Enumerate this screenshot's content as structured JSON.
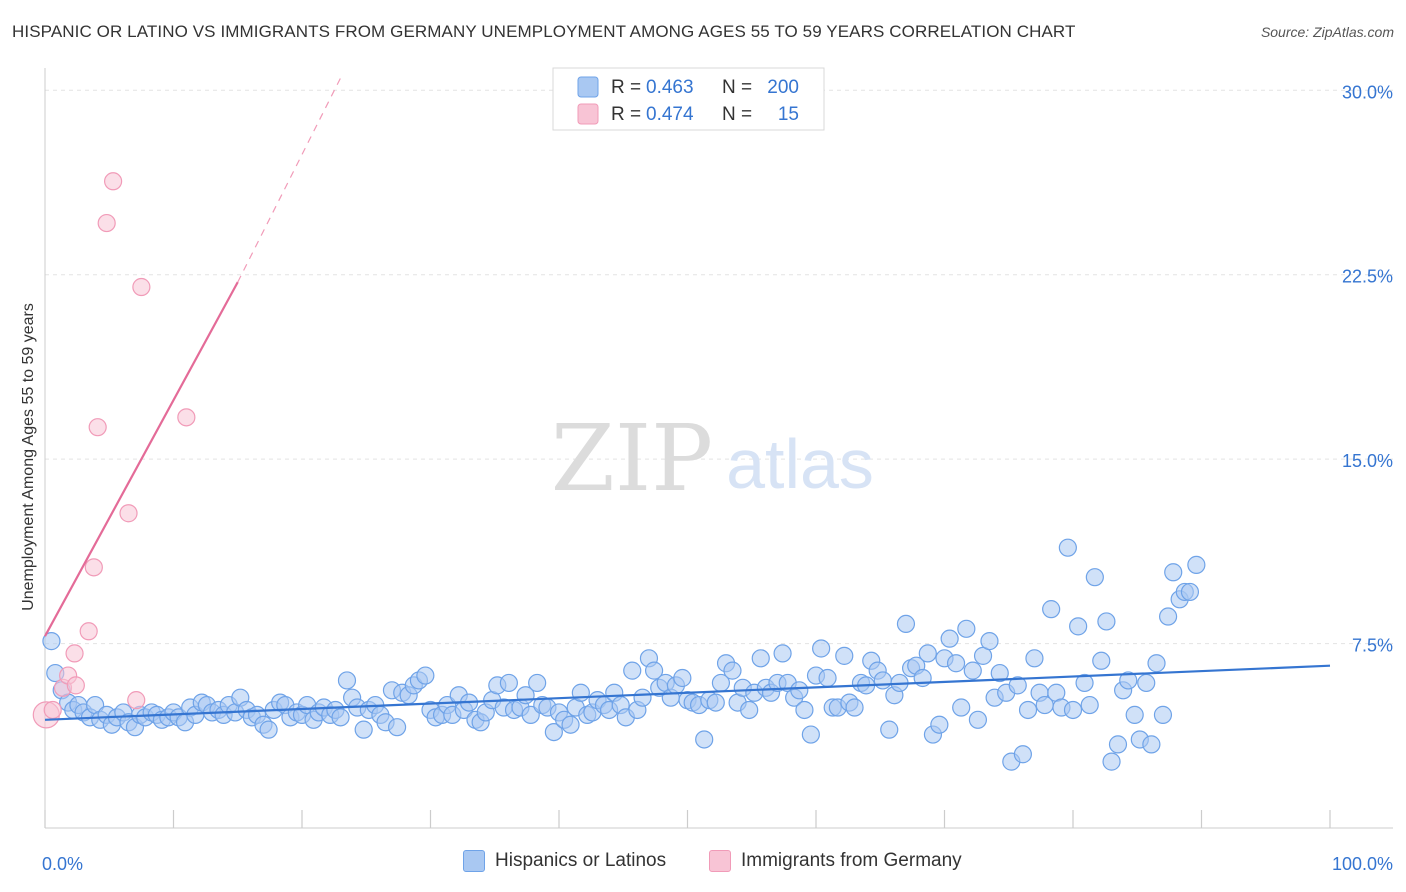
{
  "title": "HISPANIC OR LATINO VS IMMIGRANTS FROM GERMANY UNEMPLOYMENT AMONG AGES 55 TO 59 YEARS CORRELATION CHART",
  "source": "Source: ZipAtlas.com",
  "watermark": {
    "zip": "ZIP",
    "atlas": "atlas"
  },
  "colors": {
    "blue": "#6fa3e8",
    "blue_fill": "#a9c8f2",
    "blue_line": "#3575d1",
    "pink": "#f19bb8",
    "pink_fill": "#f8c4d5",
    "pink_line": "#e46b98",
    "axis_text": "#3575d1",
    "grid": "#e3e3e3"
  },
  "legend": {
    "rows": [
      {
        "r_label": "R =",
        "r_value": "0.463",
        "n_label": "N =",
        "n_value": "200",
        "series": "blue"
      },
      {
        "r_label": "R =",
        "r_value": "0.474",
        "n_label": "N =",
        "n_value": "15",
        "series": "pink"
      }
    ]
  },
  "bottom_legend": [
    {
      "label": "Hispanics or Latinos",
      "series": "blue"
    },
    {
      "label": "Immigrants from Germany",
      "series": "pink"
    }
  ],
  "chart_data": {
    "type": "scatter",
    "title": "HISPANIC OR LATINO VS IMMIGRANTS FROM GERMANY UNEMPLOYMENT AMONG AGES 55 TO 59 YEARS CORRELATION CHART",
    "xlabel": "",
    "ylabel": "Unemployment Among Ages 55 to 59 years",
    "xlim": [
      0,
      100
    ],
    "ylim": [
      0,
      30.5
    ],
    "x_tick_labels": [
      {
        "value": 0,
        "label": "0.0%"
      },
      {
        "value": 100,
        "label": "100.0%"
      }
    ],
    "y_tick_labels": [
      {
        "value": 7.5,
        "label": "7.5%"
      },
      {
        "value": 15.0,
        "label": "15.0%"
      },
      {
        "value": 22.5,
        "label": "22.5%"
      },
      {
        "value": 30.0,
        "label": "30.0%"
      }
    ],
    "series": [
      {
        "name": "Hispanics or Latinos",
        "color": "blue",
        "R": 0.463,
        "N": 200,
        "trend": {
          "x0": 0,
          "y0": 4.4,
          "x1": 100,
          "y1": 6.6
        },
        "points": [
          [
            0.5,
            7.6
          ],
          [
            0.8,
            6.3
          ],
          [
            1.3,
            5.6
          ],
          [
            1.8,
            5.1
          ],
          [
            2.2,
            4.8
          ],
          [
            2.6,
            5.0
          ],
          [
            3.0,
            4.7
          ],
          [
            3.5,
            4.5
          ],
          [
            3.9,
            5.0
          ],
          [
            4.3,
            4.4
          ],
          [
            4.8,
            4.6
          ],
          [
            5.2,
            4.2
          ],
          [
            5.6,
            4.5
          ],
          [
            6.1,
            4.7
          ],
          [
            6.5,
            4.3
          ],
          [
            7.0,
            4.1
          ],
          [
            7.4,
            4.6
          ],
          [
            7.8,
            4.5
          ],
          [
            8.3,
            4.7
          ],
          [
            8.7,
            4.6
          ],
          [
            9.1,
            4.4
          ],
          [
            9.6,
            4.5
          ],
          [
            10.0,
            4.7
          ],
          [
            10.4,
            4.5
          ],
          [
            10.9,
            4.3
          ],
          [
            11.3,
            4.9
          ],
          [
            11.7,
            4.6
          ],
          [
            12.2,
            5.1
          ],
          [
            12.6,
            5.0
          ],
          [
            13.0,
            4.7
          ],
          [
            13.5,
            4.8
          ],
          [
            13.9,
            4.6
          ],
          [
            14.3,
            5.0
          ],
          [
            14.8,
            4.7
          ],
          [
            15.2,
            5.3
          ],
          [
            15.7,
            4.8
          ],
          [
            16.1,
            4.5
          ],
          [
            16.5,
            4.6
          ],
          [
            17.0,
            4.2
          ],
          [
            17.4,
            4.0
          ],
          [
            17.8,
            4.8
          ],
          [
            18.3,
            5.1
          ],
          [
            18.7,
            5.0
          ],
          [
            19.1,
            4.5
          ],
          [
            19.6,
            4.7
          ],
          [
            20.0,
            4.6
          ],
          [
            20.4,
            5.0
          ],
          [
            20.9,
            4.4
          ],
          [
            21.3,
            4.7
          ],
          [
            21.7,
            4.9
          ],
          [
            22.2,
            4.6
          ],
          [
            22.6,
            4.8
          ],
          [
            23.0,
            4.5
          ],
          [
            23.5,
            6.0
          ],
          [
            23.9,
            5.3
          ],
          [
            24.3,
            4.9
          ],
          [
            24.8,
            4.0
          ],
          [
            25.2,
            4.8
          ],
          [
            25.7,
            5.0
          ],
          [
            26.1,
            4.6
          ],
          [
            26.5,
            4.3
          ],
          [
            27.0,
            5.6
          ],
          [
            27.4,
            4.1
          ],
          [
            27.8,
            5.5
          ],
          [
            28.3,
            5.4
          ],
          [
            28.7,
            5.8
          ],
          [
            29.1,
            6.0
          ],
          [
            29.6,
            6.2
          ],
          [
            30.0,
            4.8
          ],
          [
            30.4,
            4.5
          ],
          [
            30.9,
            4.6
          ],
          [
            31.3,
            5.0
          ],
          [
            31.7,
            4.6
          ],
          [
            32.2,
            5.4
          ],
          [
            32.6,
            4.8
          ],
          [
            33.0,
            5.1
          ],
          [
            33.5,
            4.4
          ],
          [
            33.9,
            4.3
          ],
          [
            34.3,
            4.7
          ],
          [
            34.8,
            5.2
          ],
          [
            35.2,
            5.8
          ],
          [
            35.7,
            4.9
          ],
          [
            36.1,
            5.9
          ],
          [
            36.5,
            4.8
          ],
          [
            37.0,
            4.9
          ],
          [
            37.4,
            5.4
          ],
          [
            37.8,
            4.6
          ],
          [
            38.3,
            5.9
          ],
          [
            38.7,
            5.0
          ],
          [
            39.1,
            4.9
          ],
          [
            39.6,
            3.9
          ],
          [
            40.0,
            4.7
          ],
          [
            40.4,
            4.4
          ],
          [
            40.9,
            4.2
          ],
          [
            41.3,
            4.9
          ],
          [
            41.7,
            5.5
          ],
          [
            42.2,
            4.6
          ],
          [
            42.6,
            4.7
          ],
          [
            43.0,
            5.2
          ],
          [
            43.5,
            5.0
          ],
          [
            43.9,
            4.8
          ],
          [
            44.3,
            5.5
          ],
          [
            44.8,
            5.0
          ],
          [
            45.2,
            4.5
          ],
          [
            45.7,
            6.4
          ],
          [
            46.1,
            4.8
          ],
          [
            46.5,
            5.3
          ],
          [
            47.0,
            6.9
          ],
          [
            47.4,
            6.4
          ],
          [
            47.8,
            5.7
          ],
          [
            48.3,
            5.9
          ],
          [
            48.7,
            5.3
          ],
          [
            49.1,
            5.8
          ],
          [
            49.6,
            6.1
          ],
          [
            50.0,
            5.2
          ],
          [
            50.4,
            5.1
          ],
          [
            50.9,
            5.0
          ],
          [
            51.3,
            3.6
          ],
          [
            51.7,
            5.2
          ],
          [
            52.2,
            5.1
          ],
          [
            52.6,
            5.9
          ],
          [
            53.0,
            6.7
          ],
          [
            53.5,
            6.4
          ],
          [
            53.9,
            5.1
          ],
          [
            54.3,
            5.7
          ],
          [
            54.8,
            4.8
          ],
          [
            55.2,
            5.5
          ],
          [
            55.7,
            6.9
          ],
          [
            56.1,
            5.7
          ],
          [
            56.5,
            5.5
          ],
          [
            57.0,
            5.9
          ],
          [
            57.4,
            7.1
          ],
          [
            57.8,
            5.9
          ],
          [
            58.3,
            5.3
          ],
          [
            58.7,
            5.6
          ],
          [
            59.1,
            4.8
          ],
          [
            59.6,
            3.8
          ],
          [
            60.0,
            6.2
          ],
          [
            60.4,
            7.3
          ],
          [
            60.9,
            6.1
          ],
          [
            61.3,
            4.9
          ],
          [
            61.7,
            4.9
          ],
          [
            62.2,
            7.0
          ],
          [
            62.6,
            5.1
          ],
          [
            63.0,
            4.9
          ],
          [
            63.5,
            5.9
          ],
          [
            63.9,
            5.8
          ],
          [
            64.3,
            6.8
          ],
          [
            64.8,
            6.4
          ],
          [
            65.2,
            6.0
          ],
          [
            65.7,
            4.0
          ],
          [
            66.1,
            5.4
          ],
          [
            66.5,
            5.9
          ],
          [
            67.0,
            8.3
          ],
          [
            67.4,
            6.5
          ],
          [
            67.8,
            6.6
          ],
          [
            68.3,
            6.1
          ],
          [
            68.7,
            7.1
          ],
          [
            69.1,
            3.8
          ],
          [
            69.6,
            4.2
          ],
          [
            70.0,
            6.9
          ],
          [
            70.4,
            7.7
          ],
          [
            70.9,
            6.7
          ],
          [
            71.3,
            4.9
          ],
          [
            71.7,
            8.1
          ],
          [
            72.2,
            6.4
          ],
          [
            72.6,
            4.4
          ],
          [
            73.0,
            7.0
          ],
          [
            73.5,
            7.6
          ],
          [
            73.9,
            5.3
          ],
          [
            74.3,
            6.3
          ],
          [
            74.8,
            5.5
          ],
          [
            75.2,
            2.7
          ],
          [
            75.7,
            5.8
          ],
          [
            76.1,
            3.0
          ],
          [
            76.5,
            4.8
          ],
          [
            77.0,
            6.9
          ],
          [
            77.4,
            5.5
          ],
          [
            77.8,
            5.0
          ],
          [
            78.3,
            8.9
          ],
          [
            78.7,
            5.5
          ],
          [
            79.1,
            4.9
          ],
          [
            79.6,
            11.4
          ],
          [
            80.0,
            4.8
          ],
          [
            80.4,
            8.2
          ],
          [
            80.9,
            5.9
          ],
          [
            81.3,
            5.0
          ],
          [
            81.7,
            10.2
          ],
          [
            82.2,
            6.8
          ],
          [
            82.6,
            8.4
          ],
          [
            83.0,
            2.7
          ],
          [
            83.5,
            3.4
          ],
          [
            83.9,
            5.6
          ],
          [
            84.3,
            6.0
          ],
          [
            84.8,
            4.6
          ],
          [
            85.2,
            3.6
          ],
          [
            85.7,
            5.9
          ],
          [
            86.1,
            3.4
          ],
          [
            86.5,
            6.7
          ],
          [
            87.0,
            4.6
          ],
          [
            87.4,
            8.6
          ],
          [
            87.8,
            10.4
          ],
          [
            88.3,
            9.3
          ],
          [
            88.7,
            9.6
          ],
          [
            89.1,
            9.6
          ],
          [
            89.6,
            10.7
          ]
        ]
      },
      {
        "name": "Immigrants from Germany",
        "color": "pink",
        "R": 0.474,
        "N": 15,
        "trend": {
          "x0": 0,
          "y0": 7.8,
          "x1": 15.0,
          "y1": 22.2,
          "dash_to_x": 23.0,
          "dash_to_y": 30.5
        },
        "points": [
          [
            0.1,
            4.6
          ],
          [
            0.6,
            4.8
          ],
          [
            1.4,
            5.7
          ],
          [
            1.8,
            6.2
          ],
          [
            2.4,
            5.8
          ],
          [
            2.3,
            7.1
          ],
          [
            3.4,
            8.0
          ],
          [
            3.8,
            10.6
          ],
          [
            4.1,
            16.3
          ],
          [
            4.8,
            24.6
          ],
          [
            5.3,
            26.3
          ],
          [
            6.5,
            12.8
          ],
          [
            7.1,
            5.2
          ],
          [
            7.5,
            22.0
          ],
          [
            11.0,
            16.7
          ]
        ]
      }
    ]
  }
}
